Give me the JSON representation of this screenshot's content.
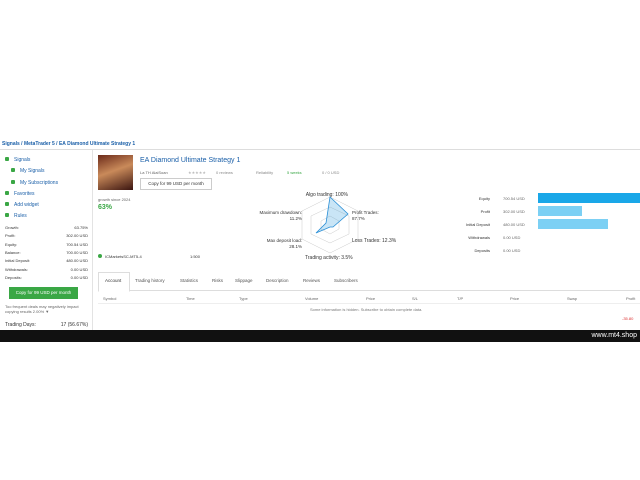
{
  "breadcrumb": "Signals / MetaTrader 5 / EA Diamond Ultimate Strategy 1",
  "menu": [
    "Signals",
    "My Signals",
    "My Subscriptions",
    "Favorites",
    "Add widget",
    "Rules"
  ],
  "stats": [
    [
      "Growth:",
      "63.75%"
    ],
    [
      "Profit:",
      "302.00 USD"
    ],
    [
      "Equity:",
      "700.54 USD"
    ],
    [
      "Balance:",
      "700.00 USD"
    ],
    [
      "Initial Deposit:",
      "480.00 USD"
    ],
    [
      "Withdrawals:",
      "0.00 USD"
    ],
    [
      "Deposits:",
      "0.00 USD"
    ]
  ],
  "copy_button": "Copy for 99 USD per month",
  "warning": "Too frequent deals may negatively impact copying results 2.00% ▼",
  "trading_days": [
    "Trading Days:",
    "17 (56.67%)"
  ],
  "signal": {
    "title": "EA Diamond Ultimate Strategy 1",
    "author": "La TH AlaiSoan",
    "reviews": "0 reviews",
    "reliability": "Reliability",
    "weeks": "5 weeks",
    "subscribers": "0 / 0 USD",
    "copy": "Copy for 99 USD per month",
    "growth_label": "growth since 2024",
    "growth": "63%",
    "server": "ICMarketsSC-MT5-4",
    "leverage": "1:500"
  },
  "radar": [
    "Algo trading: 100%",
    "Profit Trades: 87.7%",
    "Loss Trades: 12.3%",
    "Trading activity: 3.5%",
    "Max deposit load: 28.1%",
    "Maximum drawdown: 11.2%"
  ],
  "bars": [
    {
      "label": "Equity",
      "value": 700.54,
      "value_label": "700.54 USD"
    },
    {
      "label": "Profit",
      "value": 302.0,
      "value_label": "302.00 USD"
    },
    {
      "label": "Initial Deposit",
      "value": 480.0,
      "value_label": "480.00 USD"
    },
    {
      "label": "Withdrawals",
      "value": 0,
      "value_label": "0.00 USD"
    },
    {
      "label": "Deposits",
      "value": 0,
      "value_label": "0.00 USD"
    }
  ],
  "tabs": [
    "Account",
    "Trading history",
    "Statistics",
    "Risks",
    "Slippage",
    "Description",
    "Reviews",
    "Subscribers"
  ],
  "table": {
    "headers": [
      "Symbol",
      "Time",
      "Type",
      "Volume",
      "Price",
      "S/L",
      "T/P",
      "Price",
      "Swap",
      "Profit"
    ],
    "note": "Some information is hidden. Subscribe to obtain complete data.",
    "value": "-35.80"
  },
  "footer": "www.mt4.shop"
}
